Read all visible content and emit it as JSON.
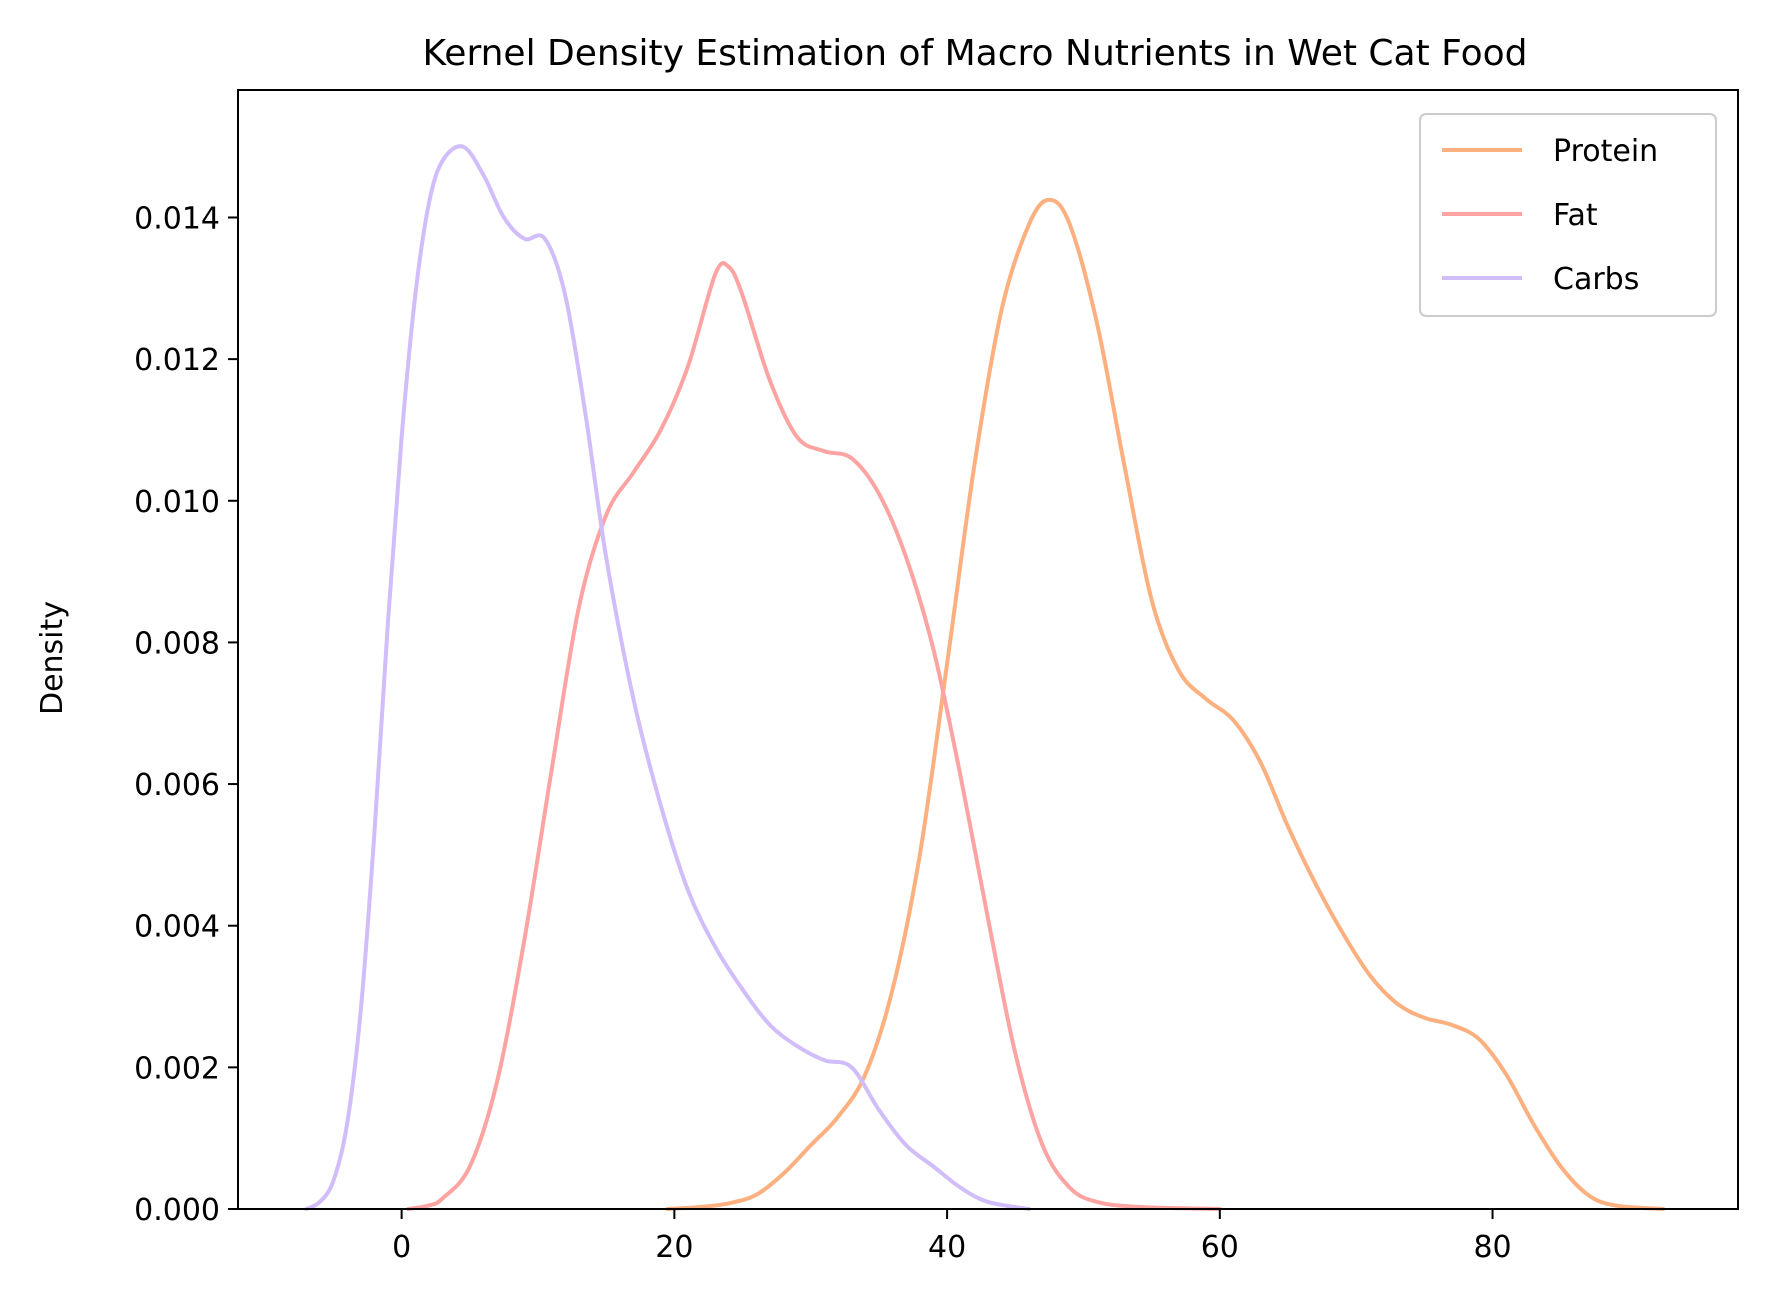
{
  "chart_data": {
    "type": "line",
    "title": "Kernel Density Estimation of Macro Nutrients in Wet Cat Food",
    "xlabel": "",
    "ylabel": "Density",
    "xlim": [
      -12,
      98
    ],
    "ylim": [
      0,
      0.0158
    ],
    "xticks": [
      0,
      20,
      40,
      60,
      80
    ],
    "yticks": [
      0.0,
      0.002,
      0.004,
      0.006,
      0.008,
      0.01,
      0.012,
      0.014
    ],
    "ytick_labels": [
      "0.000",
      "0.002",
      "0.004",
      "0.006",
      "0.008",
      "0.010",
      "0.012",
      "0.014"
    ],
    "xtick_labels": [
      "0",
      "20",
      "40",
      "60",
      "80"
    ],
    "grid": false,
    "legend": "top-right",
    "series": [
      {
        "name": "Protein",
        "color": "#fdb07f",
        "points": [
          [
            19.5,
            0
          ],
          [
            22,
            3e-05
          ],
          [
            24,
            8e-05
          ],
          [
            26,
            0.0002
          ],
          [
            28,
            0.0005
          ],
          [
            30,
            0.0009
          ],
          [
            32,
            0.0013
          ],
          [
            34,
            0.0019
          ],
          [
            36,
            0.0031
          ],
          [
            38,
            0.005
          ],
          [
            40,
            0.0077
          ],
          [
            42,
            0.0105
          ],
          [
            44,
            0.0127
          ],
          [
            46,
            0.0139
          ],
          [
            47.5,
            0.01425
          ],
          [
            49,
            0.0139
          ],
          [
            51,
            0.0125
          ],
          [
            53,
            0.0105
          ],
          [
            55,
            0.0086
          ],
          [
            57,
            0.0076
          ],
          [
            59,
            0.0072
          ],
          [
            61,
            0.0069
          ],
          [
            63,
            0.0063
          ],
          [
            65,
            0.0054
          ],
          [
            67,
            0.0046
          ],
          [
            69,
            0.0039
          ],
          [
            71,
            0.0033
          ],
          [
            73,
            0.0029
          ],
          [
            75,
            0.0027
          ],
          [
            77,
            0.0026
          ],
          [
            79,
            0.0024
          ],
          [
            81,
            0.0019
          ],
          [
            83,
            0.0012
          ],
          [
            85,
            0.0006
          ],
          [
            87,
            0.0002
          ],
          [
            89,
            5e-05
          ],
          [
            92.5,
            0
          ]
        ]
      },
      {
        "name": "Fat",
        "color": "#fda4a3",
        "points": [
          [
            0.5,
            0
          ],
          [
            2,
            5e-05
          ],
          [
            3,
            0.00015
          ],
          [
            5,
            0.0006
          ],
          [
            7,
            0.0018
          ],
          [
            9,
            0.0038
          ],
          [
            11,
            0.0062
          ],
          [
            13,
            0.0085
          ],
          [
            15,
            0.0098
          ],
          [
            17,
            0.0104
          ],
          [
            19,
            0.011
          ],
          [
            21,
            0.0119
          ],
          [
            23,
            0.0132
          ],
          [
            24,
            0.0133
          ],
          [
            25,
            0.0129
          ],
          [
            27,
            0.0117
          ],
          [
            29,
            0.0109
          ],
          [
            31,
            0.0107
          ],
          [
            33,
            0.0106
          ],
          [
            35,
            0.0101
          ],
          [
            37,
            0.0092
          ],
          [
            39,
            0.0079
          ],
          [
            41,
            0.0061
          ],
          [
            43,
            0.0041
          ],
          [
            45,
            0.0022
          ],
          [
            47,
            0.0009
          ],
          [
            49,
            0.0003
          ],
          [
            51,
            0.0001
          ],
          [
            54,
            3e-05
          ],
          [
            60,
            0
          ]
        ]
      },
      {
        "name": "Carbs",
        "color": "#d1bdf9",
        "points": [
          [
            -7,
            0
          ],
          [
            -6,
            0.0001
          ],
          [
            -5,
            0.0004
          ],
          [
            -4,
            0.0012
          ],
          [
            -3,
            0.0028
          ],
          [
            -2,
            0.0053
          ],
          [
            -1,
            0.0083
          ],
          [
            0,
            0.0109
          ],
          [
            1,
            0.0129
          ],
          [
            2,
            0.0142
          ],
          [
            3,
            0.0148
          ],
          [
            4.5,
            0.015
          ],
          [
            6,
            0.0146
          ],
          [
            7.5,
            0.014
          ],
          [
            9,
            0.0137
          ],
          [
            10.5,
            0.0137
          ],
          [
            12,
            0.0129
          ],
          [
            13.5,
            0.0112
          ],
          [
            15,
            0.0092
          ],
          [
            17,
            0.0072
          ],
          [
            19,
            0.0057
          ],
          [
            21,
            0.0045
          ],
          [
            23,
            0.0037
          ],
          [
            25,
            0.0031
          ],
          [
            27,
            0.0026
          ],
          [
            29,
            0.0023
          ],
          [
            31,
            0.0021
          ],
          [
            33,
            0.002
          ],
          [
            35,
            0.0014
          ],
          [
            37,
            0.0009
          ],
          [
            39,
            0.0006
          ],
          [
            41,
            0.0003
          ],
          [
            43,
            0.0001
          ],
          [
            46,
            0
          ]
        ]
      }
    ]
  }
}
